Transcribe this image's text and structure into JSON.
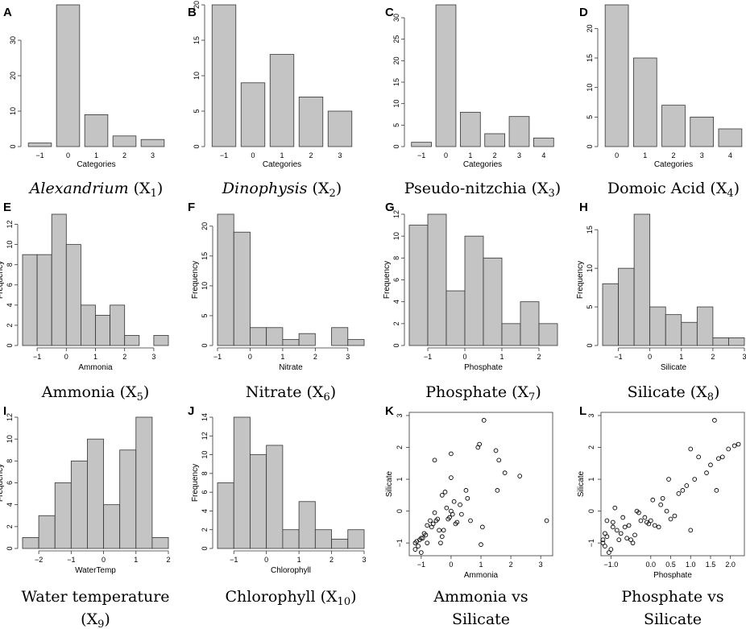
{
  "colors": {
    "bar": "#c4c4c4",
    "stroke": "#333333",
    "text": "#000000"
  },
  "chart_data": [
    {
      "type": "bar",
      "letter": "A",
      "caption": "Alexandrium (X",
      "sub": "1",
      "italic": true,
      "xlabel": "Categories",
      "ylabel": "",
      "categories": [
        "−1",
        "0",
        "1",
        "2",
        "3"
      ],
      "values": [
        1,
        40,
        9,
        3,
        2
      ],
      "ylim": [
        0,
        40
      ],
      "yticks": [
        "0",
        "10",
        "20",
        "30"
      ]
    },
    {
      "type": "bar",
      "letter": "B",
      "caption": "Dinophysis (X",
      "sub": "2",
      "italic": true,
      "xlabel": "Categories",
      "ylabel": "",
      "categories": [
        "−1",
        "0",
        "1",
        "2",
        "3"
      ],
      "values": [
        20,
        9,
        13,
        7,
        5
      ],
      "ylim": [
        0,
        20
      ],
      "yticks": [
        "0",
        "5",
        "10",
        "15",
        "20"
      ]
    },
    {
      "type": "bar",
      "letter": "C",
      "caption": "Pseudo-nitzchia (X",
      "sub": "3",
      "italic": false,
      "xlabel": "Categories",
      "ylabel": "",
      "categories": [
        "−1",
        "0",
        "1",
        "2",
        "3",
        "4"
      ],
      "values": [
        1,
        33,
        8,
        3,
        7,
        2
      ],
      "ylim": [
        0,
        33
      ],
      "yticks": [
        "0",
        "5",
        "10",
        "15",
        "20",
        "25",
        "30"
      ]
    },
    {
      "type": "bar",
      "letter": "D",
      "caption": "Domoic Acid (X",
      "sub": "4",
      "italic": false,
      "xlabel": "Categories",
      "ylabel": "",
      "categories": [
        "0",
        "1",
        "2",
        "3",
        "4"
      ],
      "values": [
        24,
        15,
        7,
        5,
        3
      ],
      "ylim": [
        0,
        24
      ],
      "yticks": [
        "0",
        "5",
        "10",
        "15",
        "20"
      ]
    },
    {
      "type": "histogram",
      "letter": "E",
      "caption": "Ammonia (X",
      "sub": "5",
      "italic": false,
      "xlabel": "Ammonia",
      "ylabel": "Frequency",
      "bins": [
        -1.5,
        -1.0,
        -0.5,
        0.0,
        0.5,
        1.0,
        1.5,
        2.0,
        2.5,
        3.0,
        3.5
      ],
      "values": [
        9,
        9,
        13,
        10,
        4,
        3,
        4,
        1,
        0,
        1
      ],
      "xlim": [
        -1.5,
        3.5
      ],
      "xticks": [
        -1,
        0,
        1,
        2,
        3
      ],
      "xtick_labels": [
        "−1",
        "0",
        "1",
        "2",
        "3"
      ],
      "ylim": [
        0,
        13
      ],
      "yticks": [
        "0",
        "2",
        "4",
        "6",
        "8",
        "10",
        "12"
      ]
    },
    {
      "type": "histogram",
      "letter": "F",
      "caption": "Nitrate (X",
      "sub": "6",
      "italic": false,
      "xlabel": "Nitrate",
      "ylabel": "Frequency",
      "bins": [
        -1.0,
        -0.5,
        0.0,
        0.5,
        1.0,
        1.5,
        2.0,
        2.5,
        3.0,
        3.5
      ],
      "values": [
        22,
        19,
        3,
        3,
        1,
        2,
        0,
        3,
        1
      ],
      "xlim": [
        -1.0,
        3.5
      ],
      "xticks": [
        -1,
        0,
        1,
        2,
        3
      ],
      "xtick_labels": [
        "−1",
        "0",
        "1",
        "2",
        "3"
      ],
      "ylim": [
        0,
        22
      ],
      "yticks": [
        "0",
        "5",
        "10",
        "15",
        "20"
      ]
    },
    {
      "type": "histogram",
      "letter": "G",
      "caption": "Phosphate (X",
      "sub": "7",
      "italic": false,
      "xlabel": "Phosphate",
      "ylabel": "Frequency",
      "bins": [
        -1.5,
        -1.0,
        -0.5,
        0.0,
        0.5,
        1.0,
        1.5,
        2.0,
        2.5
      ],
      "values": [
        11,
        12,
        5,
        10,
        8,
        2,
        4,
        2
      ],
      "xlim": [
        -1.5,
        2.5
      ],
      "xticks": [
        -1,
        0,
        1,
        2
      ],
      "xtick_labels": [
        "−1",
        "0",
        "1",
        "2"
      ],
      "ylim": [
        0,
        12
      ],
      "yticks": [
        "0",
        "2",
        "4",
        "6",
        "8",
        "10",
        "12"
      ]
    },
    {
      "type": "histogram",
      "letter": "H",
      "caption": "Silicate (X",
      "sub": "8",
      "italic": false,
      "xlabel": "Silicate",
      "ylabel": "Frequency",
      "bins": [
        -1.5,
        -1.0,
        -0.5,
        0.0,
        0.5,
        1.0,
        1.5,
        2.0,
        2.5,
        3.0
      ],
      "values": [
        8,
        10,
        17,
        5,
        4,
        3,
        5,
        1,
        1
      ],
      "xlim": [
        -1.5,
        3.0
      ],
      "xticks": [
        -1,
        0,
        1,
        2,
        3
      ],
      "xtick_labels": [
        "−1",
        "0",
        "1",
        "2",
        "3"
      ],
      "ylim": [
        0,
        17
      ],
      "yticks": [
        "0",
        "5",
        "10",
        "15"
      ]
    },
    {
      "type": "histogram",
      "letter": "I",
      "caption": "Water temperature",
      "caption2": "(X",
      "sub": "9",
      "italic": false,
      "xlabel": "WaterTemp",
      "ylabel": "Frequency",
      "bins": [
        -2.5,
        -2.0,
        -1.5,
        -1.0,
        -0.5,
        0.0,
        0.5,
        1.0,
        1.5,
        2.0
      ],
      "values": [
        1,
        3,
        6,
        8,
        10,
        4,
        9,
        12,
        1
      ],
      "xlim": [
        -2.5,
        2.0
      ],
      "xticks": [
        -2,
        -1,
        0,
        1,
        2
      ],
      "xtick_labels": [
        "−2",
        "−1",
        "0",
        "1",
        "2"
      ],
      "ylim": [
        0,
        12
      ],
      "yticks": [
        "0",
        "2",
        "4",
        "6",
        "8",
        "10",
        "12"
      ]
    },
    {
      "type": "histogram",
      "letter": "J",
      "caption": "Chlorophyll (X",
      "sub": "10",
      "italic": false,
      "xlabel": "Chlorophyll",
      "ylabel": "Frequency",
      "bins": [
        -1.5,
        -1.0,
        -0.5,
        0.0,
        0.5,
        1.0,
        1.5,
        2.0,
        2.5,
        3.0
      ],
      "values": [
        7,
        14,
        10,
        11,
        2,
        5,
        2,
        1,
        2
      ],
      "xlim": [
        -1.5,
        3.0
      ],
      "xticks": [
        -1,
        0,
        1,
        2,
        3
      ],
      "xtick_labels": [
        "−1",
        "0",
        "1",
        "2",
        "3"
      ],
      "ylim": [
        0,
        14
      ],
      "yticks": [
        "0",
        "2",
        "4",
        "6",
        "8",
        "10",
        "12",
        "14"
      ]
    },
    {
      "type": "scatter",
      "letter": "K",
      "caption": "Ammonia vs",
      "caption2": "Silicate",
      "sub": "",
      "italic": false,
      "xlabel": "Ammonia",
      "ylabel": "Silicate",
      "xlim": [
        -1.4,
        3.4
      ],
      "ylim": [
        -1.4,
        3.1
      ],
      "xticks": [
        -1,
        0,
        1,
        2,
        3
      ],
      "xtick_labels": [
        "−1",
        "0",
        "1",
        "2",
        "3"
      ],
      "yticks": [
        -1,
        0,
        1,
        2,
        3
      ],
      "ytick_labels": [
        "−1",
        "0",
        "1",
        "2",
        "3"
      ],
      "x": [
        -1.2,
        -1.2,
        -1.1,
        -1.15,
        -1.0,
        -1.05,
        -0.9,
        -0.95,
        -0.85,
        -0.8,
        -0.7,
        -0.65,
        -0.6,
        -0.55,
        -0.5,
        -0.45,
        -0.4,
        -0.35,
        -0.3,
        -0.2,
        -0.15,
        -0.1,
        -0.05,
        0.0,
        0.0,
        0.05,
        0.1,
        0.15,
        0.2,
        0.3,
        0.35,
        0.5,
        0.55,
        0.9,
        0.95,
        1.0,
        1.05,
        1.1,
        1.5,
        1.55,
        1.6,
        1.8,
        2.3,
        3.2,
        -0.55,
        -0.8,
        -1.0,
        -0.25,
        0.65,
        0.0,
        -0.3
      ],
      "y": [
        -1.0,
        -1.2,
        -1.1,
        -0.95,
        -1.3,
        -0.9,
        -0.7,
        -0.85,
        -0.75,
        -1.0,
        -0.3,
        -0.5,
        -0.4,
        1.6,
        -0.3,
        -0.25,
        -0.6,
        -1.0,
        0.5,
        0.6,
        0.1,
        -0.25,
        -0.2,
        1.8,
        1.05,
        -0.1,
        0.3,
        -0.4,
        -0.35,
        0.2,
        -0.1,
        0.65,
        0.4,
        2.0,
        2.1,
        -1.05,
        -0.5,
        2.85,
        1.9,
        0.65,
        1.6,
        1.2,
        1.1,
        -0.3,
        -0.05,
        -0.45,
        -0.85,
        -0.6,
        -0.3,
        0.0,
        -0.8
      ]
    },
    {
      "type": "scatter",
      "letter": "L",
      "caption": "Phosphate vs",
      "caption2": "Silicate",
      "sub": "",
      "italic": false,
      "xlabel": "Phosphate",
      "ylabel": "Silicate",
      "xlim": [
        -1.25,
        2.35
      ],
      "ylim": [
        -1.4,
        3.1
      ],
      "xticks": [
        -1.0,
        0.0,
        0.5,
        1.0,
        1.5,
        2.0
      ],
      "xtick_labels": [
        "−1.0",
        "0.0",
        "0.5",
        "1.0",
        "1.5",
        "2.0"
      ],
      "yticks": [
        -1,
        0,
        1,
        2,
        3
      ],
      "ytick_labels": [
        "−1",
        "0",
        "1",
        "2",
        "3"
      ],
      "x": [
        -1.2,
        -1.2,
        -1.15,
        -1.15,
        -1.1,
        -1.1,
        -1.05,
        -1.0,
        -0.95,
        -0.9,
        -0.85,
        -0.8,
        -0.75,
        -0.7,
        -0.65,
        -0.6,
        -0.55,
        -0.5,
        -0.45,
        -0.35,
        -0.3,
        -0.25,
        -0.15,
        -0.1,
        -0.05,
        0.05,
        0.1,
        0.2,
        0.3,
        0.4,
        0.45,
        0.5,
        0.6,
        0.7,
        0.8,
        0.9,
        1.0,
        1.0,
        1.1,
        1.2,
        1.4,
        1.5,
        1.6,
        1.65,
        1.7,
        1.8,
        1.95,
        2.1,
        2.2,
        0.0,
        -0.4,
        -0.95,
        0.25
      ],
      "y": [
        -1.0,
        -0.9,
        -0.7,
        -1.1,
        -0.8,
        -0.3,
        -1.3,
        -1.2,
        -0.5,
        0.1,
        -0.6,
        -0.9,
        -0.7,
        -0.2,
        -0.5,
        -0.85,
        -0.45,
        -0.9,
        -1.0,
        0.0,
        -0.05,
        -0.3,
        -0.2,
        -0.35,
        -0.4,
        0.35,
        -0.45,
        -0.5,
        0.4,
        0.0,
        1.0,
        -0.25,
        -0.15,
        0.55,
        0.65,
        0.8,
        -0.6,
        1.95,
        1.0,
        1.7,
        1.2,
        1.45,
        2.85,
        0.65,
        1.65,
        1.7,
        1.95,
        2.05,
        2.1,
        -0.3,
        -0.75,
        -0.35,
        0.2
      ]
    }
  ]
}
